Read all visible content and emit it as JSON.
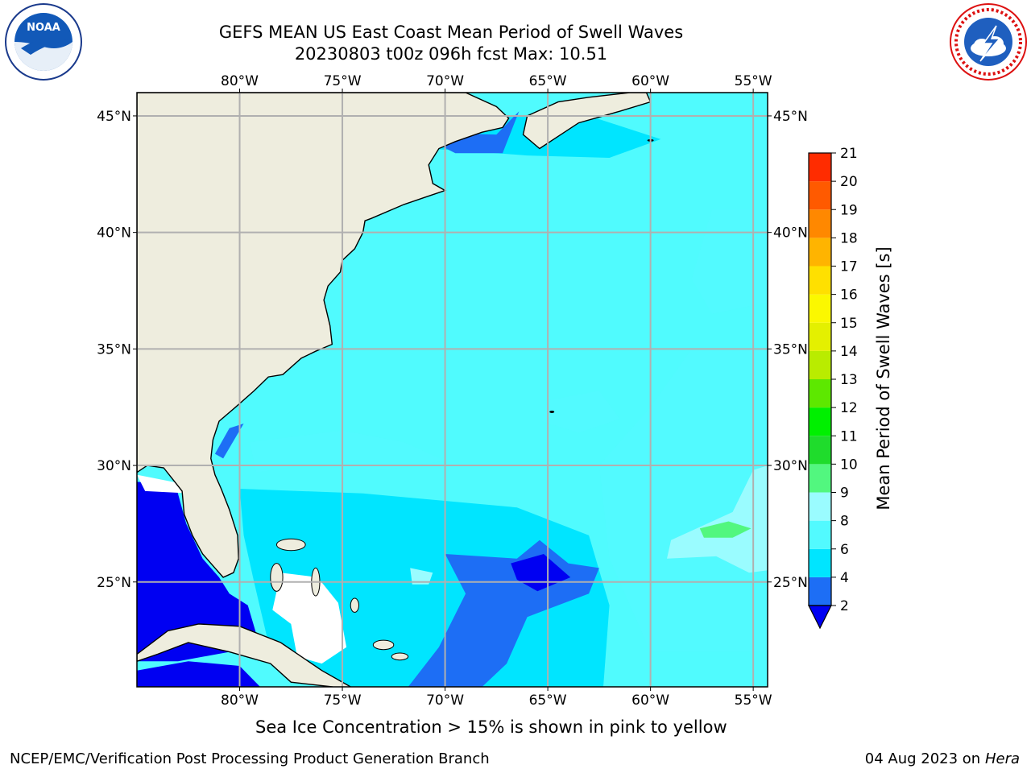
{
  "header": {
    "title_line1": "GEFS MEAN US East Coast Mean Period of Swell Waves",
    "title_line2": "20230803 t00z 096h fcst   Max: 10.51"
  },
  "logos": {
    "left": "noaa-logo",
    "right": "nws-logo"
  },
  "map": {
    "lon_labels": [
      "80°W",
      "75°W",
      "70°W",
      "65°W",
      "60°W",
      "55°W"
    ],
    "lat_labels": [
      "45°N",
      "40°N",
      "35°N",
      "30°N",
      "25°N"
    ],
    "lon_values": [
      -80,
      -75,
      -70,
      -65,
      -60,
      -55
    ],
    "lat_values": [
      45,
      40,
      35,
      30,
      25
    ],
    "lon_range": [
      -85,
      -54.3
    ],
    "lat_range": [
      20.5,
      46
    ],
    "land_color": "#eeedde",
    "ocean_color": "#50fbfe"
  },
  "colorbar": {
    "label": "Mean Period of Swell Waves [s]",
    "ticks": [
      "2",
      "4",
      "6",
      "8",
      "9",
      "10",
      "11",
      "12",
      "13",
      "14",
      "15",
      "16",
      "17",
      "18",
      "19",
      "20",
      "21"
    ],
    "colors": [
      "#1d6ef5",
      "#00e5ff",
      "#52faff",
      "#9afcff",
      "#52f77f",
      "#1fdc2c",
      "#00f000",
      "#5de800",
      "#b9ec00",
      "#e4f000",
      "#fbf800",
      "#ffe000",
      "#ffb400",
      "#ff8800",
      "#ff5a00",
      "#ff2c00"
    ],
    "underflow_color": "#0000f2"
  },
  "subtitle": "Sea Ice Concentration > 15% is shown in pink to yellow",
  "footer": {
    "left": "NCEP/EMC/Verification Post Processing Product Generation Branch",
    "right_date": "04 Aug 2023 on",
    "right_machine": "Hera"
  }
}
